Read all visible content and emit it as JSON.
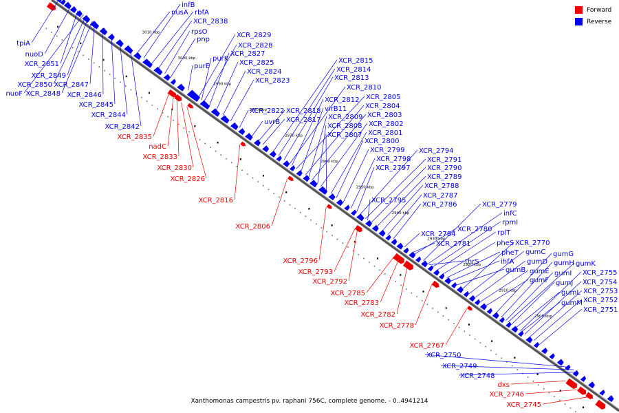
{
  "footer": "Xanthomonas campestris pv. raphani 756C, complete genome. - 0..4941214",
  "legend": [
    {
      "label": "Forward",
      "color": "#ee0000"
    },
    {
      "label": "Reverse",
      "color": "#0000ee"
    }
  ],
  "scale_labels": [
    "3010 kbp",
    "3000 kbp",
    "2990 kbp",
    "2980 kbp",
    "2970 kbp",
    "2960 kbp",
    "2950 kbp",
    "2940 kbp",
    "2930 kbp",
    "2920 kbp",
    "2910 kbp",
    "2900 kbp"
  ],
  "forward_labels": [
    "XCR_2835",
    "nadC",
    "XCR_2833",
    "XCR_2830",
    "XCR_2826",
    "XCR_2816",
    "XCR_2806",
    "XCR_2796",
    "XCR_2793",
    "XCR_2792",
    "XCR_2785",
    "XCR_2783",
    "XCR_2782",
    "XCR_2778",
    "XCR_2767",
    "dxs",
    "XCR_2746",
    "XCR_2745"
  ],
  "reverse_labels": [
    "tpiA",
    "nuoD",
    "XCR_2851",
    "XCR_2849",
    "XCR_2850",
    "XCR_2847",
    "nuoF",
    "XCR_2848",
    "XCR_2846",
    "XCR_2845",
    "XCR_2844",
    "XCR_2842",
    "nusA",
    "infB",
    "rbfA",
    "XCR_2838",
    "rpsO",
    "pnp",
    "purE",
    "purK",
    "XCR_2829",
    "XCR_2828",
    "XCR_2827",
    "XCR_2825",
    "XCR_2824",
    "XCR_2823",
    "XCR_2815",
    "XCR_2814",
    "XCR_2813",
    "XCR_2810",
    "XCR_2812",
    "XCR_2805",
    "virB11",
    "XCR_2804",
    "XCR_2809",
    "XCR_2803",
    "XCR_2822",
    "XCR_2818",
    "uvrB",
    "XCR_2817",
    "XCR_2808",
    "XCR_2802",
    "XCR_2807",
    "XCR_2801",
    "XCR_2800",
    "XCR_2799",
    "XCR_2794",
    "XCR_2798",
    "XCR_2791",
    "XCR_2797",
    "XCR_2790",
    "XCR_2789",
    "XCR_2788",
    "XCR_2787",
    "XCR_2795",
    "XCR_2786",
    "XCR_2779",
    "infC",
    "rpmI",
    "rplT",
    "XCR_2784",
    "XCR_2780",
    "XCR_2781",
    "pheS",
    "XCR_2770",
    "pheT",
    "gumC",
    "gumG",
    "thrS",
    "ihfA",
    "gumD",
    "gumH",
    "gumK",
    "gumE",
    "gumB",
    "gumI",
    "XCR_2755",
    "gumF",
    "gumJ",
    "XCR_2754",
    "gumL",
    "XCR_2753",
    "gumM",
    "XCR_2752",
    "XCR_2751",
    "XCR_2750",
    "XCR_2749",
    "XCR_2748"
  ]
}
